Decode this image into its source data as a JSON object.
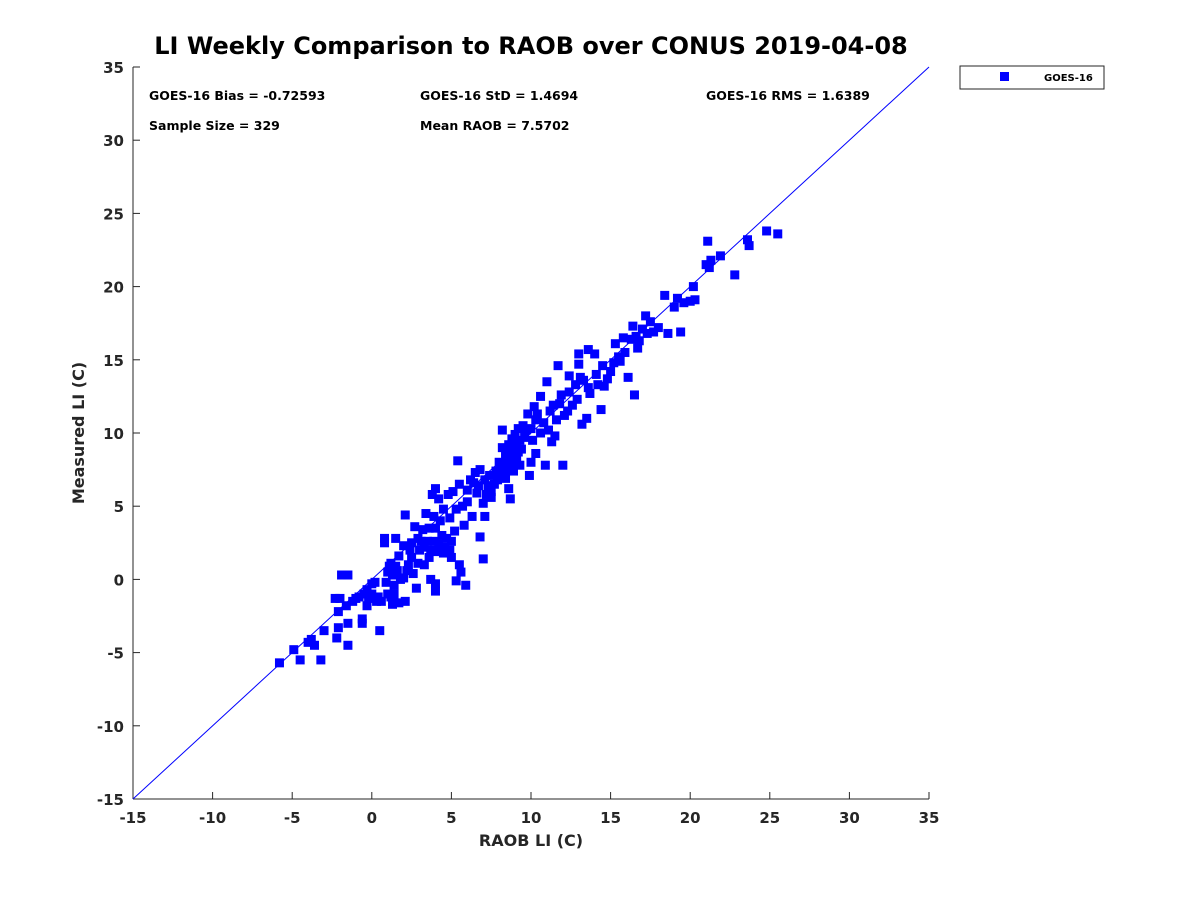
{
  "chart_data": {
    "type": "scatter",
    "title": "LI Weekly Comparison to RAOB over CONUS 2019-04-08",
    "xlabel": "RAOB LI (C)",
    "ylabel": "Measured LI (C)",
    "xlim": [
      -15,
      35
    ],
    "ylim": [
      -15,
      35
    ],
    "xticks": [
      "-15",
      "-10",
      "-5",
      "0",
      "5",
      "10",
      "15",
      "20",
      "25",
      "30",
      "35"
    ],
    "yticks": [
      "-15",
      "-10",
      "-5",
      "0",
      "5",
      "10",
      "15",
      "20",
      "25",
      "30",
      "35"
    ],
    "grid": false,
    "legend_position": "top-right",
    "reference_line": {
      "from": [
        -15,
        -15
      ],
      "to": [
        35,
        35
      ],
      "color": "#0000ff"
    },
    "stats": [
      "GOES-16 Bias = -0.72593",
      "GOES-16 StD = 1.4694",
      "GOES-16 RMS = 1.6389",
      "Sample Size = 329",
      "Mean RAOB = 7.5702"
    ],
    "series": [
      {
        "name": "GOES-16",
        "color": "#0000ff",
        "marker": "square",
        "points": [
          [
            -5.8,
            -5.7
          ],
          [
            -4.9,
            -4.8
          ],
          [
            -4.5,
            -5.5
          ],
          [
            -4.0,
            -4.3
          ],
          [
            -3.8,
            -4.1
          ],
          [
            -3.6,
            -4.5
          ],
          [
            -3.2,
            -5.5
          ],
          [
            -3.0,
            -3.5
          ],
          [
            -2.3,
            -1.3
          ],
          [
            -2.1,
            -2.2
          ],
          [
            -2.0,
            -1.3
          ],
          [
            -2.1,
            -3.3
          ],
          [
            -2.2,
            -4.0
          ],
          [
            -1.9,
            0.3
          ],
          [
            -1.6,
            -1.8
          ],
          [
            -1.5,
            0.3
          ],
          [
            -1.5,
            -3.0
          ],
          [
            -1.5,
            -4.5
          ],
          [
            -1.2,
            -1.5
          ],
          [
            -1.0,
            -1.3
          ],
          [
            -0.8,
            -1.2
          ],
          [
            -0.5,
            -1.0
          ],
          [
            -0.6,
            -2.7
          ],
          [
            -0.6,
            -3.0
          ],
          [
            -0.3,
            -1.8
          ],
          [
            -0.3,
            -0.7
          ],
          [
            -0.2,
            -1.3
          ],
          [
            0.0,
            -1.0
          ],
          [
            0.0,
            -0.3
          ],
          [
            0.2,
            -0.2
          ],
          [
            0.3,
            -1.5
          ],
          [
            0.4,
            -1.2
          ],
          [
            0.5,
            -3.5
          ],
          [
            0.6,
            -1.5
          ],
          [
            0.8,
            2.5
          ],
          [
            0.8,
            2.8
          ],
          [
            0.9,
            -0.2
          ],
          [
            1.0,
            0.5
          ],
          [
            1.0,
            -1.0
          ],
          [
            1.1,
            0.9
          ],
          [
            1.2,
            -1.2
          ],
          [
            1.2,
            1.1
          ],
          [
            1.3,
            -1.7
          ],
          [
            1.3,
            0.3
          ],
          [
            1.4,
            -0.4
          ],
          [
            1.4,
            -1.0
          ],
          [
            1.5,
            0.9
          ],
          [
            1.5,
            2.8
          ],
          [
            1.6,
            0.6
          ],
          [
            1.7,
            1.6
          ],
          [
            1.7,
            -1.6
          ],
          [
            1.8,
            0.0
          ],
          [
            2.0,
            2.3
          ],
          [
            2.0,
            0.1
          ],
          [
            2.1,
            4.4
          ],
          [
            2.1,
            -1.5
          ],
          [
            2.2,
            0.6
          ],
          [
            2.3,
            1.0
          ],
          [
            2.4,
            2.0
          ],
          [
            2.5,
            2.5
          ],
          [
            2.5,
            1.5
          ],
          [
            2.6,
            0.4
          ],
          [
            2.7,
            3.6
          ],
          [
            2.8,
            -0.6
          ],
          [
            2.9,
            2.8
          ],
          [
            2.9,
            1.1
          ],
          [
            3.0,
            2.0
          ],
          [
            3.1,
            2.6
          ],
          [
            3.2,
            3.4
          ],
          [
            3.3,
            2.2
          ],
          [
            3.3,
            1.0
          ],
          [
            3.4,
            4.5
          ],
          [
            3.5,
            2.6
          ],
          [
            3.6,
            3.5
          ],
          [
            3.6,
            1.5
          ],
          [
            3.7,
            0.0
          ],
          [
            3.7,
            2.0
          ],
          [
            3.8,
            5.8
          ],
          [
            3.9,
            4.3
          ],
          [
            3.9,
            2.6
          ],
          [
            4.0,
            6.2
          ],
          [
            4.0,
            3.5
          ],
          [
            4.0,
            -0.3
          ],
          [
            4.0,
            -0.8
          ],
          [
            4.1,
            1.9
          ],
          [
            4.2,
            5.5
          ],
          [
            4.2,
            2.4
          ],
          [
            4.3,
            4.0
          ],
          [
            4.4,
            3.0
          ],
          [
            4.5,
            1.8
          ],
          [
            4.5,
            4.8
          ],
          [
            4.6,
            2.2
          ],
          [
            4.7,
            2.8
          ],
          [
            4.8,
            5.8
          ],
          [
            4.9,
            2.0
          ],
          [
            4.9,
            4.2
          ],
          [
            5.0,
            2.6
          ],
          [
            5.0,
            1.5
          ],
          [
            5.1,
            6.0
          ],
          [
            5.2,
            3.3
          ],
          [
            5.3,
            -0.1
          ],
          [
            5.3,
            4.8
          ],
          [
            5.4,
            8.1
          ],
          [
            5.5,
            6.5
          ],
          [
            5.6,
            0.5
          ],
          [
            5.5,
            1.0
          ],
          [
            5.7,
            5.0
          ],
          [
            5.8,
            3.7
          ],
          [
            5.9,
            -0.4
          ],
          [
            6.0,
            6.1
          ],
          [
            6.0,
            5.3
          ],
          [
            6.2,
            6.8
          ],
          [
            6.3,
            4.3
          ],
          [
            6.4,
            6.6
          ],
          [
            6.5,
            7.3
          ],
          [
            6.6,
            5.9
          ],
          [
            6.7,
            6.4
          ],
          [
            6.8,
            2.9
          ],
          [
            6.8,
            7.5
          ],
          [
            7.0,
            1.4
          ],
          [
            7.0,
            5.2
          ],
          [
            7.1,
            6.8
          ],
          [
            7.1,
            4.3
          ],
          [
            7.2,
            5.8
          ],
          [
            7.3,
            6.4
          ],
          [
            7.4,
            7.1
          ],
          [
            7.5,
            5.6
          ],
          [
            7.5,
            6.0
          ],
          [
            7.7,
            6.5
          ],
          [
            7.8,
            7.4
          ],
          [
            7.9,
            6.8
          ],
          [
            8.0,
            8.0
          ],
          [
            8.0,
            7.2
          ],
          [
            8.1,
            7.6
          ],
          [
            8.2,
            10.2
          ],
          [
            8.2,
            9.0
          ],
          [
            8.3,
            7.8
          ],
          [
            8.4,
            6.9
          ],
          [
            8.4,
            8.5
          ],
          [
            8.5,
            8.2
          ],
          [
            8.5,
            7.5
          ],
          [
            8.6,
            9.2
          ],
          [
            8.6,
            6.2
          ],
          [
            8.7,
            8.8
          ],
          [
            8.7,
            5.5
          ],
          [
            8.7,
            8.0
          ],
          [
            8.8,
            8.4
          ],
          [
            8.8,
            9.6
          ],
          [
            8.9,
            7.4
          ],
          [
            8.9,
            8.6
          ],
          [
            9.0,
            9.9
          ],
          [
            9.0,
            7.9
          ],
          [
            9.1,
            8.3
          ],
          [
            9.1,
            9.2
          ],
          [
            9.2,
            8.7
          ],
          [
            9.2,
            10.3
          ],
          [
            9.3,
            9.5
          ],
          [
            9.3,
            7.8
          ],
          [
            9.4,
            8.9
          ],
          [
            9.5,
            10.5
          ],
          [
            9.6,
            9.7
          ],
          [
            9.7,
            10.2
          ],
          [
            9.8,
            11.3
          ],
          [
            9.9,
            7.1
          ],
          [
            10.0,
            8.0
          ],
          [
            10.0,
            10.3
          ],
          [
            10.1,
            9.5
          ],
          [
            10.2,
            11.8
          ],
          [
            10.3,
            8.6
          ],
          [
            10.3,
            10.9
          ],
          [
            10.4,
            11.3
          ],
          [
            10.6,
            12.5
          ],
          [
            10.6,
            10.0
          ],
          [
            10.8,
            10.7
          ],
          [
            10.9,
            7.8
          ],
          [
            11.0,
            13.5
          ],
          [
            11.1,
            10.2
          ],
          [
            11.2,
            11.5
          ],
          [
            11.3,
            9.4
          ],
          [
            11.4,
            11.9
          ],
          [
            11.5,
            9.8
          ],
          [
            11.6,
            10.9
          ],
          [
            11.7,
            14.6
          ],
          [
            11.8,
            12.0
          ],
          [
            11.9,
            12.6
          ],
          [
            12.0,
            7.8
          ],
          [
            12.1,
            11.2
          ],
          [
            12.3,
            11.5
          ],
          [
            12.4,
            13.9
          ],
          [
            12.4,
            12.8
          ],
          [
            12.6,
            11.9
          ],
          [
            12.8,
            13.3
          ],
          [
            12.9,
            12.3
          ],
          [
            13.0,
            15.4
          ],
          [
            13.0,
            14.7
          ],
          [
            13.1,
            13.8
          ],
          [
            13.2,
            10.6
          ],
          [
            13.3,
            13.6
          ],
          [
            13.5,
            11.0
          ],
          [
            13.6,
            15.7
          ],
          [
            13.6,
            13.1
          ],
          [
            13.7,
            12.7
          ],
          [
            14.0,
            15.4
          ],
          [
            14.1,
            14.0
          ],
          [
            14.2,
            13.3
          ],
          [
            14.4,
            11.6
          ],
          [
            14.5,
            14.6
          ],
          [
            14.6,
            13.2
          ],
          [
            14.8,
            13.7
          ],
          [
            15.0,
            14.2
          ],
          [
            15.2,
            14.8
          ],
          [
            15.3,
            16.1
          ],
          [
            15.5,
            15.2
          ],
          [
            15.6,
            14.9
          ],
          [
            15.8,
            16.5
          ],
          [
            15.9,
            15.5
          ],
          [
            16.1,
            13.8
          ],
          [
            16.3,
            16.4
          ],
          [
            16.4,
            17.3
          ],
          [
            16.5,
            12.6
          ],
          [
            16.6,
            16.6
          ],
          [
            16.7,
            15.8
          ],
          [
            16.8,
            16.3
          ],
          [
            17.0,
            17.1
          ],
          [
            17.2,
            18.0
          ],
          [
            17.3,
            16.8
          ],
          [
            17.5,
            17.6
          ],
          [
            17.7,
            16.9
          ],
          [
            18.0,
            17.2
          ],
          [
            18.4,
            19.4
          ],
          [
            18.6,
            16.8
          ],
          [
            19.0,
            18.6
          ],
          [
            19.2,
            19.2
          ],
          [
            19.4,
            16.9
          ],
          [
            19.6,
            18.9
          ],
          [
            20.0,
            19.0
          ],
          [
            20.2,
            20.0
          ],
          [
            20.3,
            19.1
          ],
          [
            21.0,
            21.5
          ],
          [
            21.1,
            23.1
          ],
          [
            21.3,
            21.8
          ],
          [
            21.2,
            21.3
          ],
          [
            21.9,
            22.1
          ],
          [
            22.8,
            20.8
          ],
          [
            23.6,
            23.2
          ],
          [
            23.7,
            22.8
          ],
          [
            24.8,
            23.8
          ],
          [
            25.5,
            23.6
          ]
        ]
      }
    ]
  }
}
